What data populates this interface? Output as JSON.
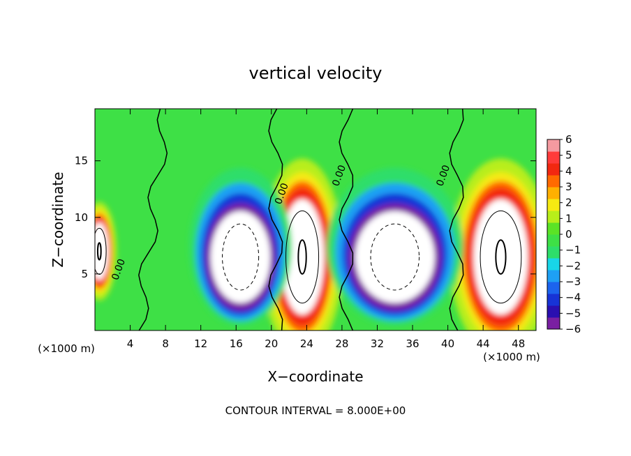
{
  "chart_data": {
    "type": "heatmap",
    "title": "vertical velocity",
    "xlabel": "X−coordinate",
    "ylabel": "Z−coordinate",
    "x_unit": "(×1000 m)",
    "xlim": [
      0,
      50
    ],
    "ylim": [
      0,
      19.6
    ],
    "x_ticks": [
      4,
      8,
      12,
      16,
      20,
      24,
      28,
      32,
      36,
      40,
      44,
      48
    ],
    "y_ticks": [
      5,
      10,
      15
    ],
    "x_tick_labels": [
      "4",
      "8",
      "12",
      "16",
      "20",
      "24",
      "28",
      "32",
      "36",
      "40",
      "44",
      "48"
    ],
    "y_tick_labels": [
      "5",
      "10",
      "15"
    ],
    "contour_interval_text": "CONTOUR INTERVAL = 8.000E+00",
    "contour_labels": [
      {
        "text": "0.00",
        "x": 3.0,
        "y": 5.3
      },
      {
        "text": "0.00",
        "x": 21.5,
        "y": 12.0
      },
      {
        "text": "0.00",
        "x": 28.0,
        "y": 13.6
      },
      {
        "text": "0.00",
        "x": 39.8,
        "y": 13.6
      }
    ],
    "colorbar": {
      "min": -6,
      "max": 6,
      "tick_labels": [
        "6",
        "5",
        "4",
        "3",
        "2",
        "1",
        "0",
        "−1",
        "−2",
        "−3",
        "−4",
        "−5",
        "−6"
      ],
      "colors": [
        "#7a1fa2",
        "#2a0fb0",
        "#1733d6",
        "#1c64ee",
        "#1ea0f4",
        "#18d6e8",
        "#2ede6a",
        "#3ee046",
        "#5be326",
        "#b8ee1a",
        "#f6ea12",
        "#ffb000",
        "#ff6a00",
        "#f22810",
        "#ff3b3b",
        "#f59aa0"
      ]
    },
    "updrafts": [
      {
        "x": 0.5,
        "y": 7.0,
        "w": 2.5,
        "h": 6
      },
      {
        "x": 23.5,
        "y": 6.5,
        "w": 6.0,
        "h": 12
      },
      {
        "x": 46.0,
        "y": 6.5,
        "w": 7.5,
        "h": 12
      }
    ],
    "downdrafts": [
      {
        "x": 16.5,
        "y": 6.5,
        "w": 7.5,
        "h": 9
      },
      {
        "x": 34.0,
        "y": 6.5,
        "w": 10.0,
        "h": 9
      }
    ],
    "grid": false
  }
}
